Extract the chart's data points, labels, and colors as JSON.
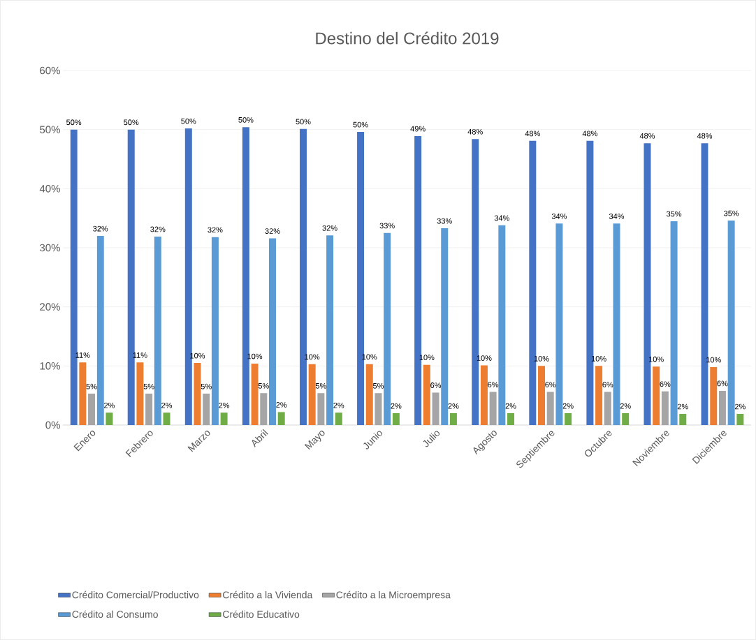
{
  "chart_data": {
    "type": "bar",
    "title": "Destino del Crédito 2019",
    "categories": [
      "Enero",
      "Febrero",
      "Marzo",
      "Abril",
      "Mayo",
      "Junio",
      "Julio",
      "Agosto",
      "Septiembre",
      "Octubre",
      "Noviembre",
      "Diciembre"
    ],
    "series": [
      {
        "name": "Crédito Comercial/Productivo",
        "color": "#4472c4",
        "values": [
          50.0,
          50.0,
          50.2,
          50.4,
          50.1,
          49.6,
          48.9,
          48.4,
          48.1,
          48.1,
          47.7,
          47.7
        ],
        "value_labels": [
          "50%",
          "50%",
          "50%",
          "50%",
          "50%",
          "50%",
          "49%",
          "48%",
          "48%",
          "48%",
          "48%",
          "48%"
        ]
      },
      {
        "name": "Crédito a la Vivienda",
        "color": "#ed7d31",
        "values": [
          10.6,
          10.6,
          10.5,
          10.4,
          10.3,
          10.3,
          10.2,
          10.1,
          10.0,
          10.0,
          9.9,
          9.8
        ],
        "value_labels": [
          "11%",
          "11%",
          "10%",
          "10%",
          "10%",
          "10%",
          "10%",
          "10%",
          "10%",
          "10%",
          "10%",
          "10%"
        ]
      },
      {
        "name": "Crédito a la Microempresa",
        "color": "#a5a5a5",
        "values": [
          5.3,
          5.3,
          5.3,
          5.4,
          5.4,
          5.4,
          5.5,
          5.6,
          5.6,
          5.6,
          5.7,
          5.8
        ],
        "value_labels": [
          "5%",
          "5%",
          "5%",
          "5%",
          "5%",
          "5%",
          "6%",
          "6%",
          "6%",
          "6%",
          "6%",
          "6%"
        ]
      },
      {
        "name": "Crédito al Consumo",
        "color": "#5b9bd5",
        "values": [
          32.0,
          31.9,
          31.8,
          31.6,
          32.1,
          32.5,
          33.3,
          33.8,
          34.1,
          34.1,
          34.5,
          34.6
        ],
        "value_labels": [
          "32%",
          "32%",
          "32%",
          "32%",
          "32%",
          "33%",
          "33%",
          "34%",
          "34%",
          "34%",
          "35%",
          "35%"
        ]
      },
      {
        "name": "Crédito Educativo",
        "color": "#70ad47",
        "values": [
          2.1,
          2.1,
          2.1,
          2.2,
          2.1,
          2.0,
          2.0,
          2.0,
          2.0,
          2.0,
          1.9,
          1.9
        ],
        "value_labels": [
          "2%",
          "2%",
          "2%",
          "2%",
          "2%",
          "2%",
          "2%",
          "2%",
          "2%",
          "2%",
          "2%",
          "2%"
        ]
      }
    ],
    "ylim": [
      0,
      60
    ],
    "yticks": [
      {
        "value": 0,
        "label": "0%"
      },
      {
        "value": 10,
        "label": "10%"
      },
      {
        "value": 20,
        "label": "20%"
      },
      {
        "value": 30,
        "label": "30%"
      },
      {
        "value": 40,
        "label": "40%"
      },
      {
        "value": 50,
        "label": "50%"
      },
      {
        "value": 60,
        "label": "60%"
      }
    ],
    "grid": "y",
    "legend": "bottom"
  }
}
